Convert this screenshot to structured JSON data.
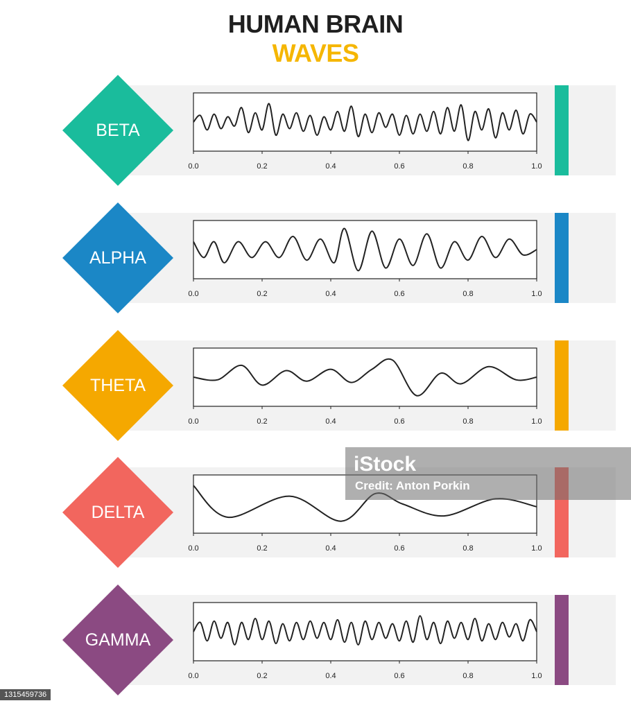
{
  "title": {
    "line1": "HUMAN BRAIN",
    "line2": "WAVES"
  },
  "colors": {
    "title_primary": "#1f1f1f",
    "title_accent": "#f5b600",
    "panel_bg": "#f2f2f2",
    "wave": "#222222"
  },
  "watermark": {
    "logo": "iStock",
    "credit": "Credit: Anton Porkin"
  },
  "image_id": "1315459736",
  "chart_data": [
    {
      "type": "line",
      "name": "BETA",
      "color": "#1abc9c",
      "xlim": [
        0.0,
        1.0
      ],
      "xticks": [
        "0.0",
        "0.2",
        "0.4",
        "0.6",
        "0.8",
        "1.0"
      ],
      "x": [
        0.0,
        0.02,
        0.04,
        0.06,
        0.08,
        0.1,
        0.12,
        0.14,
        0.16,
        0.18,
        0.2,
        0.22,
        0.24,
        0.26,
        0.28,
        0.3,
        0.32,
        0.34,
        0.36,
        0.38,
        0.4,
        0.42,
        0.44,
        0.46,
        0.48,
        0.5,
        0.52,
        0.54,
        0.56,
        0.58,
        0.6,
        0.62,
        0.64,
        0.66,
        0.68,
        0.7,
        0.72,
        0.74,
        0.76,
        0.78,
        0.8,
        0.82,
        0.84,
        0.86,
        0.88,
        0.9,
        0.92,
        0.94,
        0.96,
        0.98,
        1.0
      ],
      "y": [
        0.0,
        0.25,
        -0.3,
        0.3,
        -0.25,
        0.2,
        -0.15,
        0.55,
        -0.4,
        0.35,
        -0.3,
        0.7,
        -0.5,
        0.3,
        -0.25,
        0.35,
        -0.35,
        0.25,
        -0.5,
        0.2,
        -0.3,
        0.4,
        -0.35,
        0.6,
        -0.55,
        0.3,
        -0.4,
        0.35,
        -0.2,
        0.3,
        -0.5,
        0.25,
        -0.45,
        0.3,
        -0.35,
        0.4,
        -0.45,
        0.55,
        -0.35,
        0.65,
        -0.7,
        0.4,
        -0.3,
        0.5,
        -0.6,
        0.35,
        -0.3,
        0.45,
        -0.45,
        0.3,
        0.0
      ]
    },
    {
      "type": "line",
      "name": "ALPHA",
      "color": "#1b87c6",
      "xlim": [
        0.0,
        1.0
      ],
      "xticks": [
        "0.0",
        "0.2",
        "0.4",
        "0.6",
        "0.8",
        "1.0"
      ],
      "x": [
        0.0,
        0.03,
        0.06,
        0.09,
        0.13,
        0.17,
        0.21,
        0.25,
        0.29,
        0.33,
        0.37,
        0.41,
        0.44,
        0.48,
        0.52,
        0.56,
        0.6,
        0.64,
        0.68,
        0.72,
        0.76,
        0.8,
        0.84,
        0.88,
        0.92,
        0.96,
        1.0
      ],
      "y": [
        0.3,
        -0.3,
        0.3,
        -0.5,
        0.3,
        -0.3,
        0.3,
        -0.3,
        0.5,
        -0.4,
        0.4,
        -0.5,
        0.8,
        -0.8,
        0.7,
        -0.7,
        0.4,
        -0.6,
        0.6,
        -0.7,
        0.3,
        -0.4,
        0.5,
        -0.3,
        0.4,
        -0.2,
        0.0
      ]
    },
    {
      "type": "line",
      "name": "THETA",
      "color": "#f5a800",
      "xlim": [
        0.0,
        1.0
      ],
      "xticks": [
        "0.0",
        "0.2",
        "0.4",
        "0.6",
        "0.8",
        "1.0"
      ],
      "x": [
        0.0,
        0.07,
        0.14,
        0.2,
        0.27,
        0.33,
        0.4,
        0.46,
        0.52,
        0.58,
        0.65,
        0.72,
        0.78,
        0.86,
        0.94,
        1.0
      ],
      "y": [
        0.0,
        -0.1,
        0.45,
        -0.3,
        0.25,
        -0.15,
        0.3,
        -0.2,
        0.3,
        0.65,
        -0.7,
        0.15,
        -0.25,
        0.4,
        -0.1,
        0.0
      ]
    },
    {
      "type": "line",
      "name": "DELTA",
      "color": "#f2665e",
      "xlim": [
        0.0,
        1.0
      ],
      "xticks": [
        "0.0",
        "0.2",
        "0.4",
        "0.6",
        "0.8",
        "1.0"
      ],
      "x": [
        0.0,
        0.1,
        0.28,
        0.43,
        0.53,
        0.61,
        0.73,
        0.88,
        1.0
      ],
      "y": [
        0.7,
        -0.5,
        0.3,
        -0.65,
        0.4,
        0.0,
        -0.45,
        0.2,
        -0.1
      ]
    },
    {
      "type": "line",
      "name": "GAMMA",
      "color": "#8b4a82",
      "xlim": [
        0.0,
        1.0
      ],
      "xticks": [
        "0.0",
        "0.2",
        "0.4",
        "0.6",
        "0.8",
        "1.0"
      ],
      "x": [
        0.0,
        0.02,
        0.04,
        0.06,
        0.08,
        0.1,
        0.12,
        0.14,
        0.16,
        0.18,
        0.2,
        0.22,
        0.24,
        0.26,
        0.28,
        0.3,
        0.32,
        0.34,
        0.36,
        0.38,
        0.4,
        0.42,
        0.44,
        0.46,
        0.48,
        0.5,
        0.52,
        0.54,
        0.56,
        0.58,
        0.6,
        0.62,
        0.64,
        0.66,
        0.68,
        0.7,
        0.72,
        0.74,
        0.76,
        0.78,
        0.8,
        0.82,
        0.84,
        0.86,
        0.88,
        0.9,
        0.92,
        0.94,
        0.96,
        0.98,
        1.0
      ],
      "y": [
        0.0,
        0.35,
        -0.35,
        0.4,
        -0.25,
        0.35,
        -0.5,
        0.35,
        -0.3,
        0.5,
        -0.3,
        0.4,
        -0.45,
        0.3,
        -0.35,
        0.35,
        -0.3,
        0.4,
        -0.25,
        0.35,
        -0.3,
        0.45,
        -0.4,
        0.35,
        -0.5,
        0.4,
        -0.3,
        0.35,
        -0.25,
        0.3,
        -0.35,
        0.4,
        -0.4,
        0.6,
        -0.3,
        0.35,
        -0.45,
        0.4,
        -0.25,
        0.35,
        -0.3,
        0.5,
        -0.35,
        0.3,
        -0.3,
        0.35,
        -0.2,
        0.3,
        -0.35,
        0.45,
        0.0
      ]
    }
  ]
}
